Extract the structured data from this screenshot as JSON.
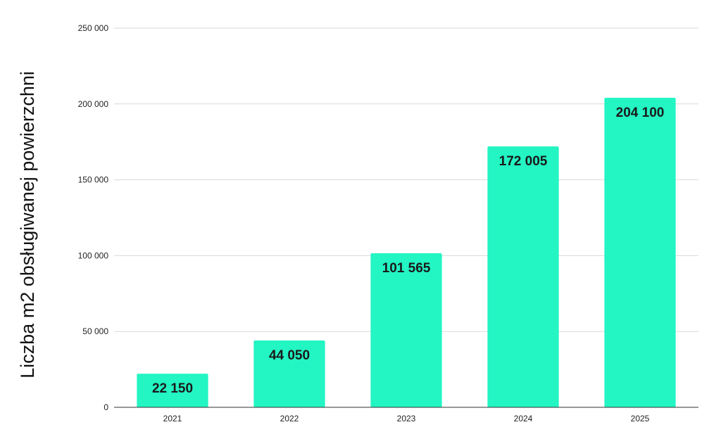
{
  "chart_data": {
    "type": "bar",
    "title": "",
    "xlabel": "",
    "ylabel": "Liczba m2 obsługiwanej powierzchni",
    "categories": [
      "2021",
      "2022",
      "2023",
      "2024",
      "2025"
    ],
    "values": [
      22150,
      44050,
      101565,
      172005,
      204100
    ],
    "data_labels": [
      "22 150",
      "44 050",
      "101 565",
      "172 005",
      "204 100"
    ],
    "ylim": [
      0,
      250000
    ],
    "yticks": [
      0,
      50000,
      100000,
      150000,
      200000,
      250000
    ],
    "ytick_labels": [
      "0",
      "50 000",
      "100 000",
      "150 000",
      "200 000",
      "250 000"
    ],
    "grid": true,
    "legend": "none",
    "colors": {
      "bar": "#23F5C3"
    }
  }
}
